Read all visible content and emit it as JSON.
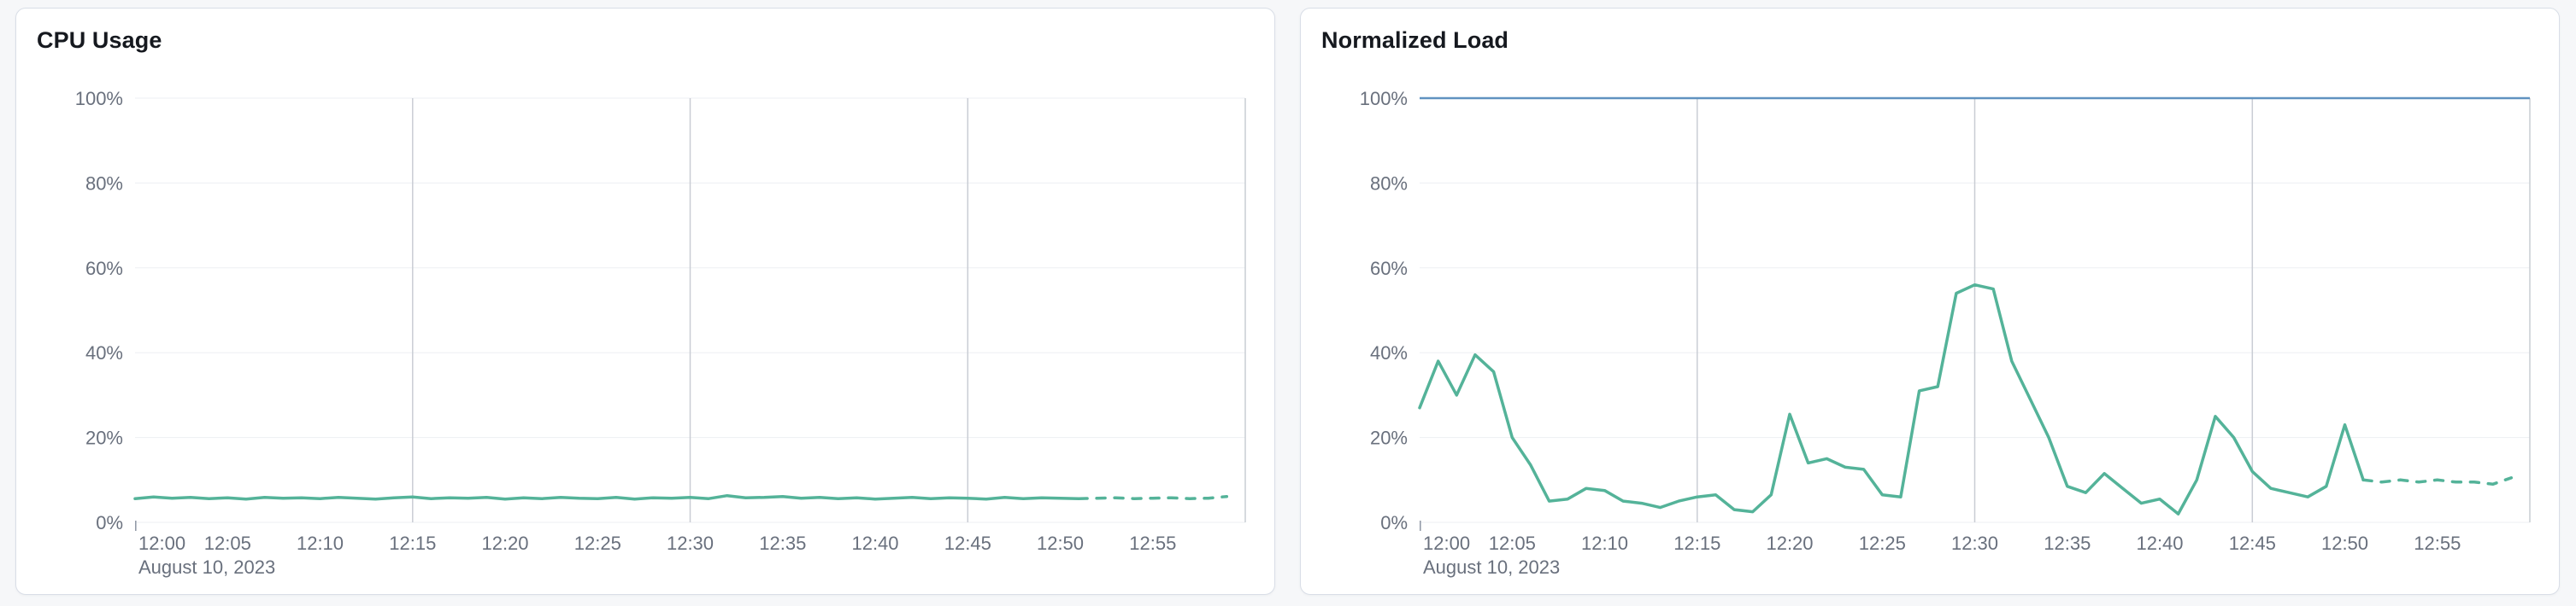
{
  "page": {
    "background_color": "#f6f7f9",
    "card_border_color": "#d9dee7"
  },
  "chart_data": [
    {
      "type": "line",
      "title": "CPU Usage",
      "date_label": "August 10, 2023",
      "xlabel": "",
      "ylabel": "",
      "ylim": [
        0,
        100
      ],
      "y_tick_values": [
        0,
        20,
        40,
        60,
        80,
        100
      ],
      "y_tick_labels": [
        "0%",
        "20%",
        "40%",
        "60%",
        "80%",
        "100%"
      ],
      "x_tick_labels": [
        "12:00",
        "12:05",
        "12:10",
        "12:15",
        "12:20",
        "12:25",
        "12:30",
        "12:35",
        "12:40",
        "12:45",
        "12:50",
        "12:55"
      ],
      "x_tick_minutes": [
        0,
        5,
        10,
        15,
        20,
        25,
        30,
        35,
        40,
        45,
        50,
        55
      ],
      "x_domain_minutes": [
        0,
        60
      ],
      "vertical_gridline_minutes": [
        15,
        30,
        45,
        60
      ],
      "grid": true,
      "legend": "none",
      "threshold": null,
      "series": [
        {
          "name": "cpu-usage",
          "color": "#54b399",
          "minute_step": 1,
          "dashed_from_index": 51,
          "values": [
            5.6,
            6.0,
            5.7,
            5.9,
            5.6,
            5.8,
            5.5,
            5.9,
            5.7,
            5.8,
            5.6,
            5.9,
            5.7,
            5.5,
            5.8,
            6.0,
            5.6,
            5.8,
            5.7,
            5.9,
            5.5,
            5.8,
            5.6,
            5.9,
            5.7,
            5.6,
            5.9,
            5.5,
            5.8,
            5.7,
            5.9,
            5.6,
            6.3,
            5.8,
            5.9,
            6.1,
            5.7,
            5.9,
            5.6,
            5.8,
            5.5,
            5.7,
            5.9,
            5.6,
            5.8,
            5.7,
            5.5,
            5.9,
            5.6,
            5.8,
            5.7,
            5.6,
            5.7,
            5.8,
            5.6,
            5.7,
            5.8,
            5.6,
            5.7,
            6.1
          ]
        }
      ]
    },
    {
      "type": "line",
      "title": "Normalized Load",
      "date_label": "August 10, 2023",
      "xlabel": "",
      "ylabel": "",
      "ylim": [
        0,
        100
      ],
      "y_tick_values": [
        0,
        20,
        40,
        60,
        80,
        100
      ],
      "y_tick_labels": [
        "0%",
        "20%",
        "40%",
        "60%",
        "80%",
        "100%"
      ],
      "x_tick_labels": [
        "12:00",
        "12:05",
        "12:10",
        "12:15",
        "12:20",
        "12:25",
        "12:30",
        "12:35",
        "12:40",
        "12:45",
        "12:50",
        "12:55"
      ],
      "x_tick_minutes": [
        0,
        5,
        10,
        15,
        20,
        25,
        30,
        35,
        40,
        45,
        50,
        55
      ],
      "x_domain_minutes": [
        0,
        60
      ],
      "vertical_gridline_minutes": [
        15,
        30,
        45,
        60
      ],
      "grid": true,
      "legend": "none",
      "threshold": {
        "value": 100,
        "color": "#6092c0"
      },
      "series": [
        {
          "name": "normalized-load",
          "color": "#54b399",
          "minute_step": 1,
          "dashed_from_index": 51,
          "values": [
            27,
            38,
            30,
            39.5,
            35.5,
            20,
            13.5,
            5,
            5.5,
            8,
            7.5,
            5,
            4.5,
            3.5,
            5,
            6,
            6.5,
            3,
            2.5,
            6.5,
            25.5,
            14,
            15,
            13,
            12.5,
            6.5,
            6,
            31,
            32,
            54,
            56,
            55,
            38,
            29,
            20,
            8.5,
            7,
            11.5,
            8,
            4.5,
            5.5,
            2,
            10,
            25,
            20,
            12,
            8,
            7,
            6,
            8.5,
            23,
            10,
            9.5,
            10,
            9.5,
            10,
            9.5,
            9.5,
            9,
            10.5
          ]
        }
      ]
    }
  ]
}
